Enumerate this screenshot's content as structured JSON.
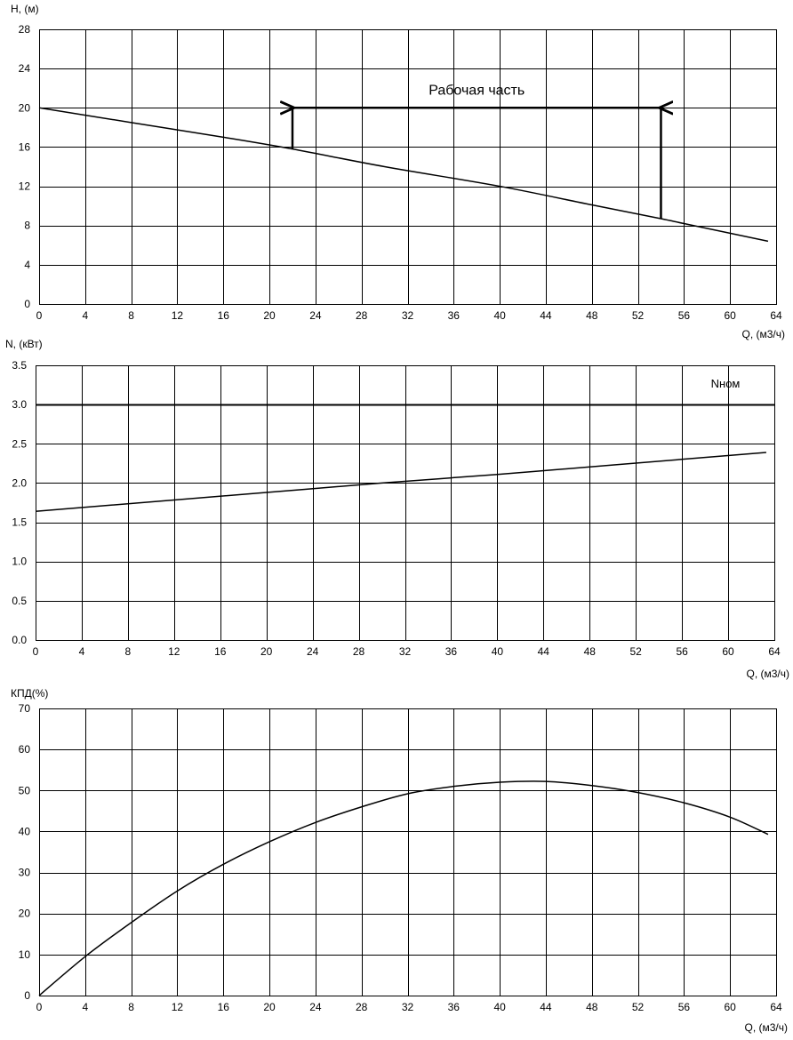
{
  "chart_data": [
    {
      "id": "head",
      "type": "line",
      "ylabel": "H, (м)",
      "xlabel": "Q, (м3/ч)",
      "xlim": [
        0,
        64
      ],
      "ylim": [
        0,
        28
      ],
      "x_ticks": [
        0,
        4,
        8,
        12,
        16,
        20,
        24,
        28,
        32,
        36,
        40,
        44,
        48,
        52,
        56,
        60,
        64
      ],
      "y_ticks": [
        0,
        4,
        8,
        12,
        16,
        20,
        24,
        28
      ],
      "grid": true,
      "series": [
        {
          "x": [
            0,
            8,
            16,
            22,
            30,
            40,
            48,
            54,
            56,
            63.3
          ],
          "y": [
            20,
            18.5,
            17.0,
            15.8,
            14.0,
            12.0,
            10.1,
            8.7,
            8.2,
            6.4
          ]
        }
      ],
      "working_range": {
        "label": "Рабочая часть",
        "q_start": 22,
        "q_end": 54,
        "h_level": 20,
        "h_start": 15.8,
        "h_end": 8.7
      }
    },
    {
      "id": "power",
      "type": "line",
      "ylabel": "N, (кВт)",
      "xlabel": "Q, (м3/ч)",
      "xlim": [
        0,
        64
      ],
      "ylim": [
        0,
        3.5
      ],
      "x_ticks": [
        0,
        4,
        8,
        12,
        16,
        20,
        24,
        28,
        32,
        36,
        40,
        44,
        48,
        52,
        56,
        60,
        64
      ],
      "y_ticks": [
        0.0,
        0.5,
        1.0,
        1.5,
        2.0,
        2.5,
        3.0,
        3.5
      ],
      "grid": true,
      "series": [
        {
          "x": [
            0,
            10,
            20,
            30,
            40,
            50,
            63.3
          ],
          "y": [
            1.64,
            1.76,
            1.88,
            2.0,
            2.11,
            2.23,
            2.39
          ]
        }
      ],
      "reference_line": {
        "label": "Nном",
        "y": 3.0
      }
    },
    {
      "id": "efficiency",
      "type": "line",
      "ylabel": "КПД(%)",
      "xlabel": "Q, (м3/ч)",
      "xlim": [
        0,
        64
      ],
      "ylim": [
        0,
        70
      ],
      "x_ticks": [
        0,
        4,
        8,
        12,
        16,
        20,
        24,
        28,
        32,
        36,
        40,
        44,
        48,
        52,
        56,
        60,
        64
      ],
      "y_ticks": [
        0,
        10,
        20,
        30,
        40,
        50,
        60,
        70
      ],
      "grid": true,
      "series": [
        {
          "x": [
            0,
            4,
            8,
            12,
            16,
            20,
            24,
            28,
            32,
            36,
            40,
            44,
            48,
            52,
            56,
            60,
            63.3
          ],
          "y": [
            0,
            9.5,
            17.8,
            25.5,
            32.0,
            37.5,
            42.2,
            46.0,
            49.2,
            51.0,
            52.0,
            52.2,
            51.2,
            49.5,
            47.0,
            43.5,
            39.3
          ]
        }
      ]
    }
  ]
}
